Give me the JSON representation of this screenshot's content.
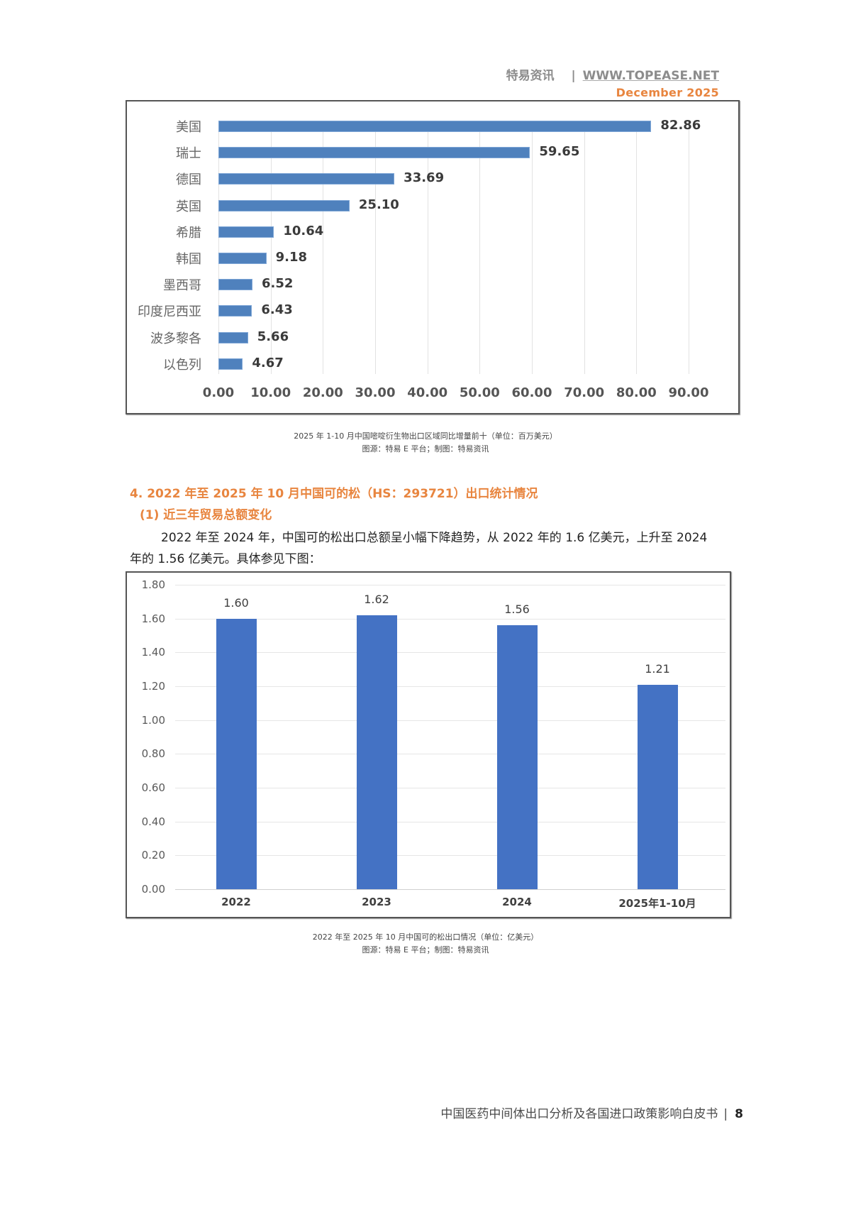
{
  "header": {
    "brand": "特易资讯",
    "separator": "|",
    "url": "WWW.TOPEASE.NET",
    "date": "December 2025"
  },
  "chart_data": [
    {
      "type": "bar",
      "orientation": "horizontal",
      "title": "2025 年 1-10 月中国嘧啶衍生物出口区域同比增量前十（单位：百万美元）",
      "source": "图源：特易 E 平台；制图：特易资讯",
      "categories": [
        "美国",
        "瑞士",
        "德国",
        "英国",
        "希腊",
        "韩国",
        "墨西哥",
        "印度尼西亚",
        "波多黎各",
        "以色列"
      ],
      "values": [
        82.86,
        59.65,
        33.69,
        25.1,
        10.64,
        9.18,
        6.52,
        6.43,
        5.66,
        4.67
      ],
      "value_labels": [
        "82.86",
        "59.65",
        "33.69",
        "25.10",
        "10.64",
        "9.18",
        "6.52",
        "6.43",
        "5.66",
        "4.67"
      ],
      "xlabel": "",
      "ylabel": "",
      "xlim": [
        0,
        90
      ],
      "x_ticks": [
        "0.00",
        "10.00",
        "20.00",
        "30.00",
        "40.00",
        "50.00",
        "60.00",
        "70.00",
        "80.00",
        "90.00"
      ],
      "grid": true,
      "legend": "none",
      "color": "#4f81bd"
    },
    {
      "type": "bar",
      "orientation": "vertical",
      "title": "2022 年至 2025 年 10 月中国可的松出口情况（单位：亿美元）",
      "source": "图源：特易 E 平台；制图：特易资讯",
      "categories": [
        "2022",
        "2023",
        "2024",
        "2025年1-10月"
      ],
      "values": [
        1.6,
        1.62,
        1.56,
        1.21
      ],
      "value_labels": [
        "1.60",
        "1.62",
        "1.56",
        "1.21"
      ],
      "xlabel": "",
      "ylabel": "",
      "ylim": [
        0,
        1.8
      ],
      "y_ticks": [
        "0.00",
        "0.20",
        "0.40",
        "0.60",
        "0.80",
        "1.00",
        "1.20",
        "1.40",
        "1.60",
        "1.80"
      ],
      "grid": true,
      "legend": "none",
      "color": "#4472c4"
    }
  ],
  "captions": {
    "chart1_title": "2025 年 1-10 月中国嘧啶衍生物出口区域同比增量前十（单位：百万美元）",
    "chart1_source": "图源：特易 E 平台；制图：特易资讯",
    "chart2_title": "2022 年至 2025 年 10 月中国可的松出口情况（单位：亿美元）",
    "chart2_source": "图源：特易 E 平台；制图：特易资讯"
  },
  "section": {
    "title": "4. 2022 年至 2025 年 10 月中国可的松（HS：293721）出口统计情况",
    "subtitle": "(1) 近三年贸易总额变化",
    "paragraph": "2022 年至 2024 年，中国可的松出口总额呈小幅下降趋势，从 2022 年的 1.6 亿美元，上升至 2024 年的 1.56 亿美元。具体参见下图："
  },
  "footer": {
    "title": "中国医药中间体出口分析及各国进口政策影响白皮书",
    "separator": "|",
    "page_number": "8"
  }
}
